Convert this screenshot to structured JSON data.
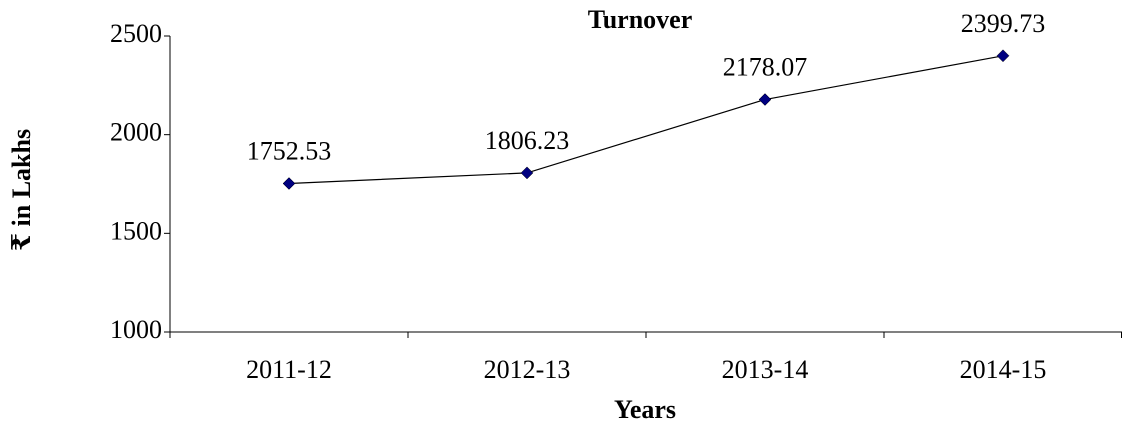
{
  "chart_data": {
    "type": "line",
    "title": "Turnover",
    "x_label": "Years",
    "y_label": "₹ in Lakhs",
    "categories": [
      "2011-12",
      "2012-13",
      "2013-14",
      "2014-15"
    ],
    "series": [
      {
        "name": "Turnover",
        "color": "#000080",
        "values": [
          1752.53,
          1806.23,
          2178.07,
          2399.73
        ]
      }
    ],
    "ylim": [
      1000,
      2500
    ],
    "yticks": [
      1000,
      1500,
      2000,
      2500
    ],
    "grid": false,
    "data_labels": true
  }
}
